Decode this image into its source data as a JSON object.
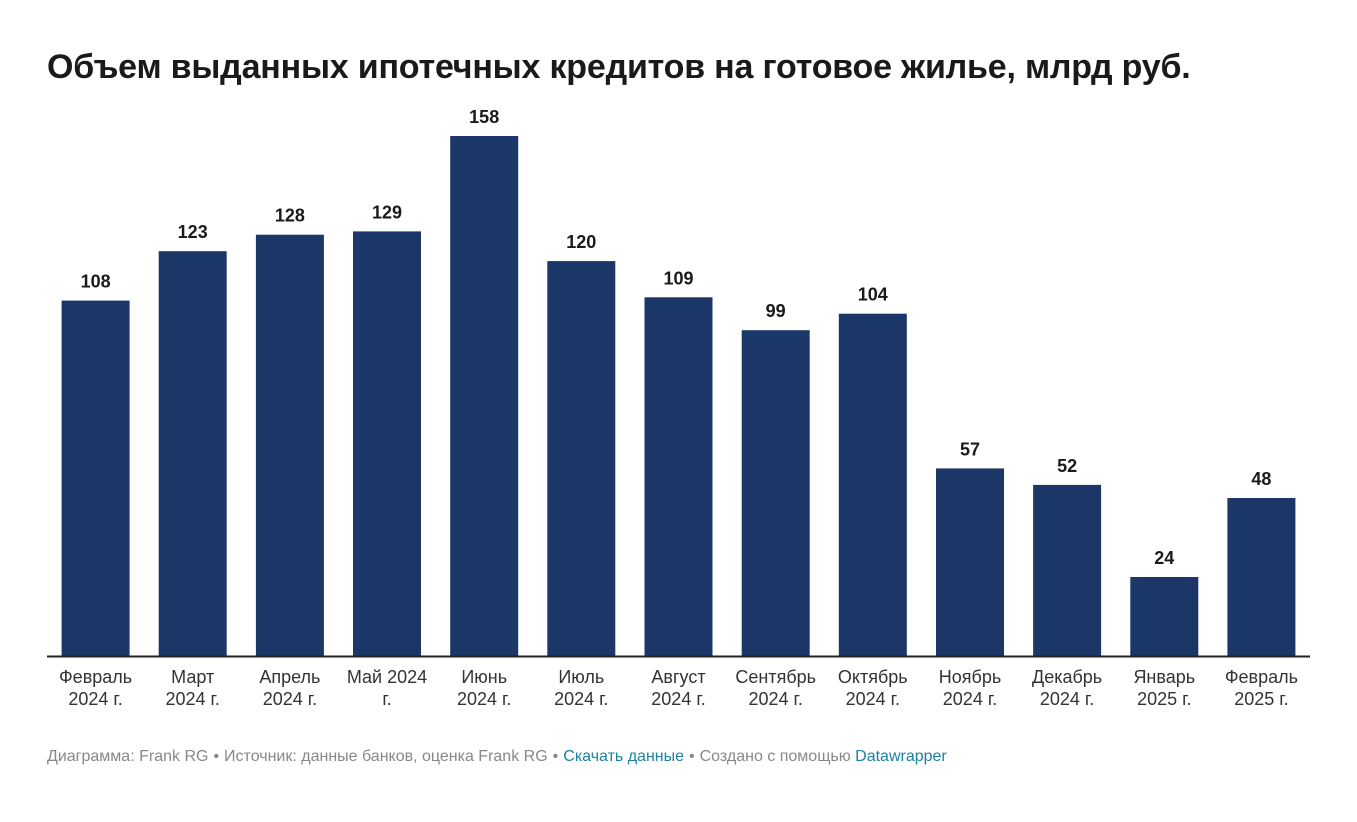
{
  "title": "Объем выданных ипотечных кредитов на готовое жилье, млрд руб.",
  "footer": {
    "chart_by": "Диаграмма: Frank RG",
    "source": "Источник: данные банков, оценка Frank RG",
    "download": "Скачать данные",
    "created_with": "Создано с помощью",
    "tool": "Datawrapper",
    "separator": "•"
  },
  "colors": {
    "bar": "#1a3768",
    "axis": "#222222",
    "link": "#1d81a2",
    "muted": "#888888"
  },
  "chart_data": {
    "type": "bar",
    "title": "Объем выданных ипотечных кредитов на готовое жилье, млрд руб.",
    "xlabel": "",
    "ylabel": "",
    "ylim": [
      0,
      158
    ],
    "grid": false,
    "categories": [
      [
        "Февраль",
        "2024 г."
      ],
      [
        "Март",
        "2024 г."
      ],
      [
        "Апрель",
        "2024 г."
      ],
      [
        "Май 2024",
        "г."
      ],
      [
        "Июнь",
        "2024 г."
      ],
      [
        "Июль",
        "2024 г."
      ],
      [
        "Август",
        "2024 г."
      ],
      [
        "Сентябрь",
        "2024 г."
      ],
      [
        "Октябрь",
        "2024 г."
      ],
      [
        "Ноябрь",
        "2024 г."
      ],
      [
        "Декабрь",
        "2024 г."
      ],
      [
        "Январь",
        "2025 г."
      ],
      [
        "Февраль",
        "2025 г."
      ]
    ],
    "values": [
      108,
      123,
      128,
      129,
      158,
      120,
      109,
      99,
      104,
      57,
      52,
      24,
      48
    ]
  }
}
